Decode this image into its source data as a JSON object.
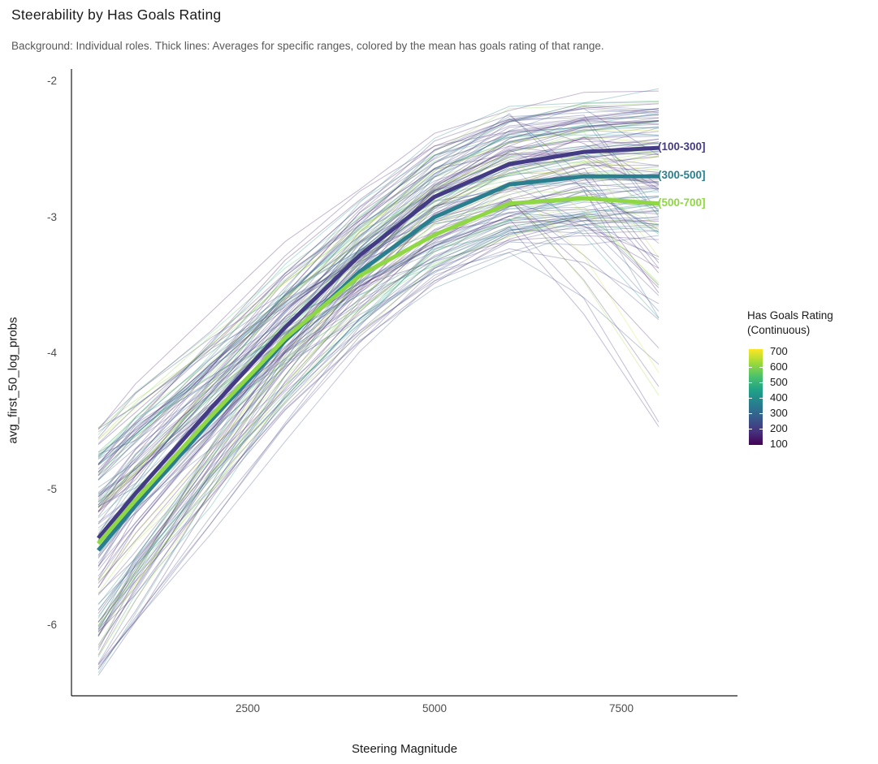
{
  "title": "Steerability by Has Goals Rating",
  "subtitle": "Background: Individual roles. Thick lines: Averages for specific ranges, colored by the mean has goals rating of that range.",
  "chart_data": {
    "type": "line",
    "x": [
      500,
      1000,
      2000,
      3000,
      4000,
      5000,
      6000,
      7000,
      8000
    ],
    "xlabel": "Steering Magnitude",
    "ylabel": "avg_first_50_log_probs",
    "xlim": [
      150,
      9050
    ],
    "ylim": [
      -6.55,
      -1.9
    ],
    "grid": false,
    "series": [
      {
        "name": "avg-rating-100-300",
        "label": "(100-300]",
        "color": "#433c85",
        "values": [
          -5.36,
          -5.03,
          -4.41,
          -3.81,
          -3.28,
          -2.85,
          -2.61,
          -2.52,
          -2.49
        ]
      },
      {
        "name": "avg-rating-300-500",
        "label": "(300-500]",
        "color": "#2a7f8e",
        "values": [
          -5.45,
          -5.12,
          -4.5,
          -3.91,
          -3.4,
          -3.0,
          -2.76,
          -2.7,
          -2.7
        ]
      },
      {
        "name": "avg-rating-500-700",
        "label": "(500-700]",
        "color": "#8fd744",
        "values": [
          -5.4,
          -5.08,
          -4.47,
          -3.89,
          -3.43,
          -3.13,
          -2.9,
          -2.86,
          -2.9
        ]
      }
    ],
    "background_lines": {
      "description": "Individual roles, ~150 thin semi-transparent lines colored by has goals rating (viridis), rising from about -6.4..-4.6 at magnitude 500 to peaks of about -3.1..-2.1 near magnitude 6000-7000, some declining to -3.5..-3.9 by 8000",
      "count": 150,
      "seed": 42,
      "opacity": 0.32,
      "start_value_range": [
        -6.4,
        -4.55
      ],
      "peak_value_range": [
        -3.15,
        -2.1
      ],
      "rise_profile": [
        0,
        0.115,
        0.331,
        0.54,
        0.725,
        0.874,
        0.958,
        0.99,
        1.0
      ]
    },
    "axes": {
      "x": {
        "label": "Steering Magnitude",
        "ticks": [
          {
            "value": 2500,
            "label": "2500"
          },
          {
            "value": 5000,
            "label": "5000"
          },
          {
            "value": 7500,
            "label": "7500"
          }
        ]
      },
      "y": {
        "label": "avg_first_50_log_probs",
        "ticks": [
          {
            "value": -2,
            "label": "-2"
          },
          {
            "value": -3,
            "label": "-3"
          },
          {
            "value": -4,
            "label": "-4"
          },
          {
            "value": -5,
            "label": "-5"
          },
          {
            "value": -6,
            "label": "-6"
          }
        ]
      }
    },
    "legend": {
      "title_line1": "Has Goals Rating",
      "title_line2": "(Continuous)",
      "position": "right",
      "top_value": 700,
      "bottom_value": 100,
      "ticks": [
        {
          "value": 700,
          "label": "700"
        },
        {
          "value": 600,
          "label": "600"
        },
        {
          "value": 500,
          "label": "500"
        },
        {
          "value": 400,
          "label": "400"
        },
        {
          "value": 300,
          "label": "300"
        },
        {
          "value": 200,
          "label": "200"
        },
        {
          "value": 100,
          "label": "100"
        }
      ]
    },
    "viridis_stops": [
      {
        "t": 0.0,
        "color": "#440154"
      },
      {
        "t": 0.14,
        "color": "#46327e"
      },
      {
        "t": 0.29,
        "color": "#365c8d"
      },
      {
        "t": 0.43,
        "color": "#277f8e"
      },
      {
        "t": 0.57,
        "color": "#1fa187"
      },
      {
        "t": 0.71,
        "color": "#4ac16d"
      },
      {
        "t": 0.86,
        "color": "#a0da39"
      },
      {
        "t": 1.0,
        "color": "#fde725"
      }
    ],
    "colors": {
      "axis_line": "#1a1a1a",
      "axis_text": "#4d4d4d",
      "title_text": "#1a1a1a",
      "subtitle_text": "#595959"
    }
  }
}
